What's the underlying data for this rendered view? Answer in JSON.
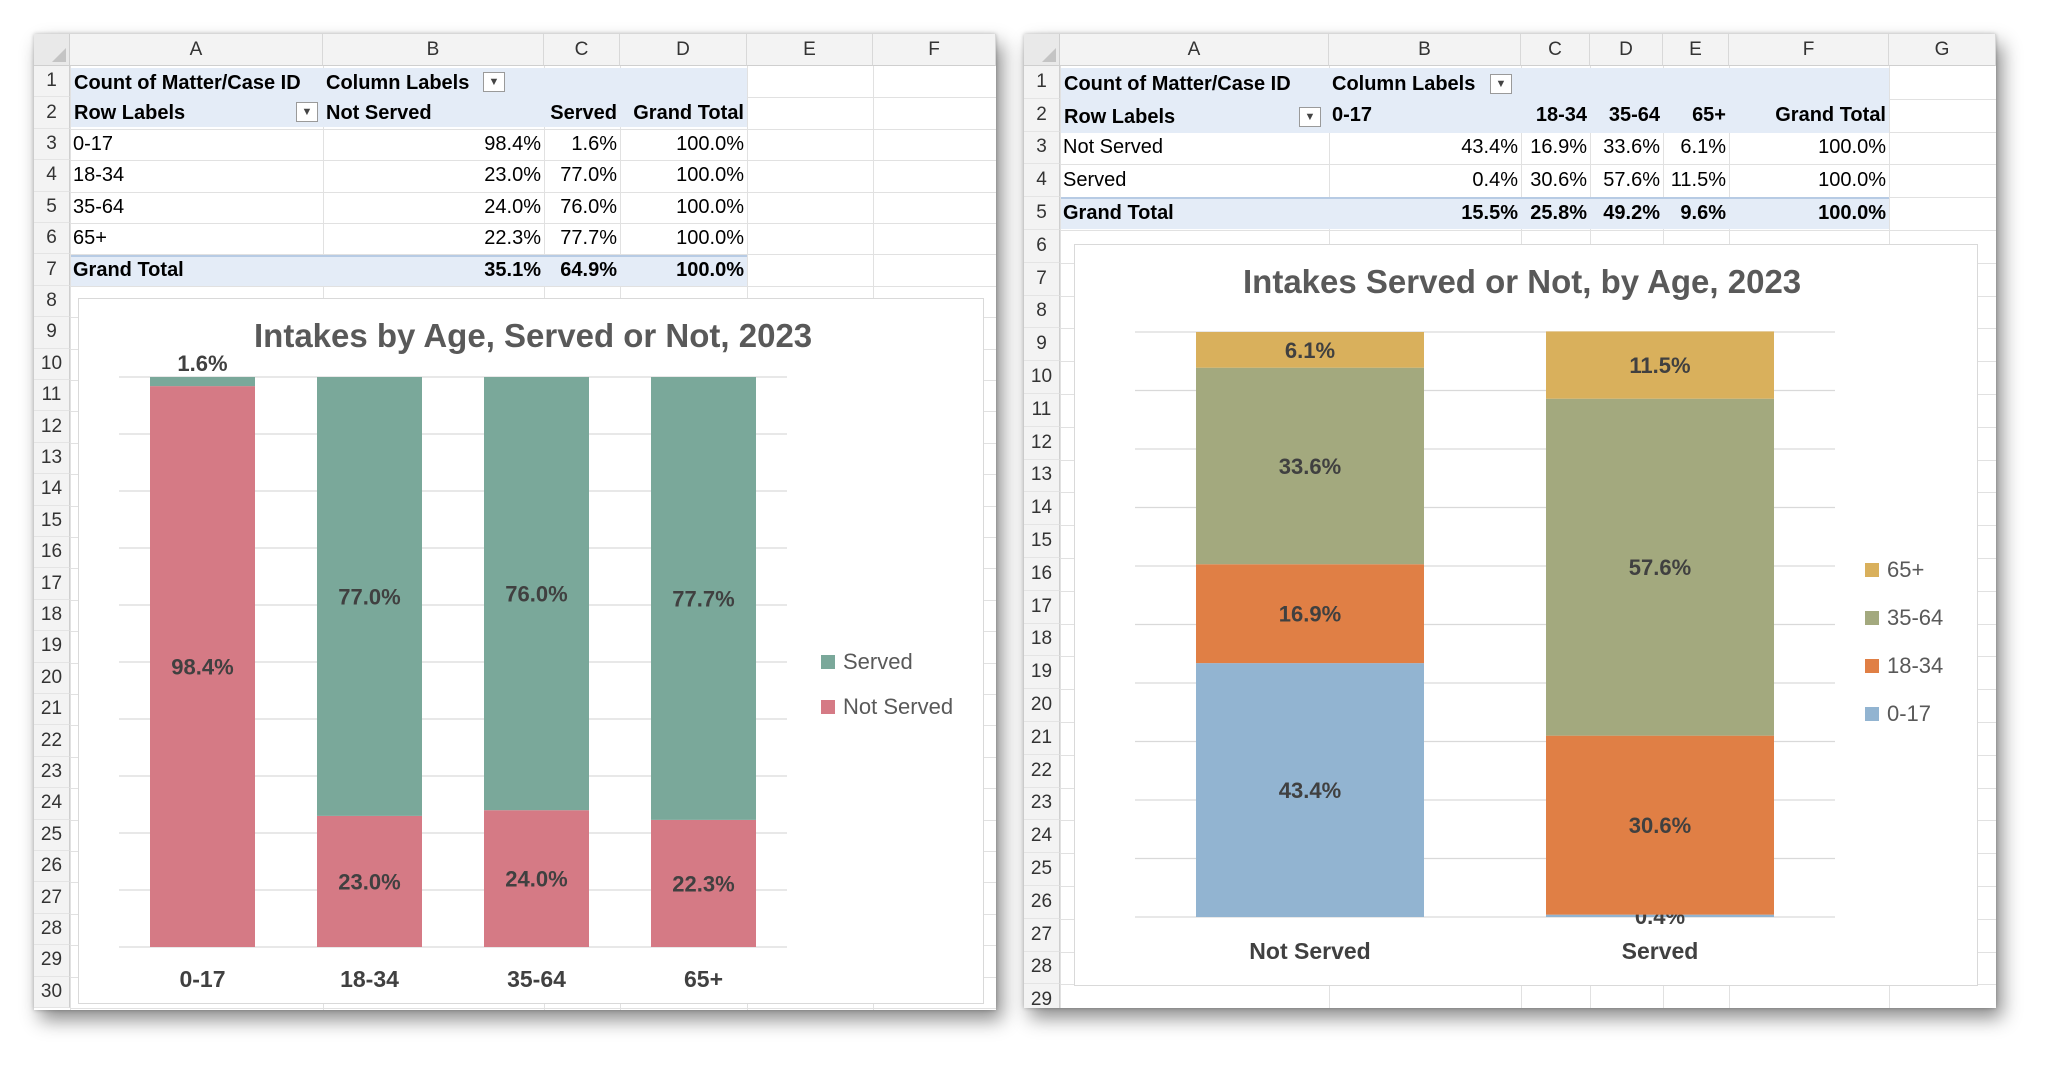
{
  "left_sheet": {
    "columns": [
      "A",
      "B",
      "C",
      "D",
      "E",
      "F"
    ],
    "rows": [
      "1",
      "2",
      "3",
      "4",
      "5",
      "6",
      "7",
      "8",
      "9",
      "10",
      "11",
      "12",
      "13",
      "14",
      "15",
      "16",
      "17",
      "18",
      "19",
      "20",
      "21",
      "22",
      "23",
      "24",
      "25",
      "26",
      "27",
      "28",
      "29",
      "30"
    ],
    "pivot": {
      "value_field": "Count of Matter/Case ID",
      "column_labels": "Column Labels",
      "row_labels": "Row Labels",
      "col_headers": [
        "Not Served",
        "Served",
        "Grand Total"
      ],
      "rows": [
        {
          "label": "0-17",
          "values": [
            "98.4%",
            "1.6%",
            "100.0%"
          ]
        },
        {
          "label": "18-34",
          "values": [
            "23.0%",
            "77.0%",
            "100.0%"
          ]
        },
        {
          "label": "35-64",
          "values": [
            "24.0%",
            "76.0%",
            "100.0%"
          ]
        },
        {
          "label": "65+",
          "values": [
            "22.3%",
            "77.7%",
            "100.0%"
          ]
        }
      ],
      "total": {
        "label": "Grand Total",
        "values": [
          "35.1%",
          "64.9%",
          "100.0%"
        ]
      }
    }
  },
  "right_sheet": {
    "columns": [
      "A",
      "B",
      "C",
      "D",
      "E",
      "F",
      "G"
    ],
    "rows": [
      "1",
      "2",
      "3",
      "4",
      "5",
      "6",
      "7",
      "8",
      "9",
      "10",
      "11",
      "12",
      "13",
      "14",
      "15",
      "16",
      "17",
      "18",
      "19",
      "20",
      "21",
      "22",
      "23",
      "24",
      "25",
      "26",
      "27",
      "28",
      "29"
    ],
    "pivot": {
      "value_field": "Count of Matter/Case ID",
      "column_labels": "Column Labels",
      "row_labels": "Row Labels",
      "col_headers": [
        "0-17",
        "18-34",
        "35-64",
        "65+",
        "Grand Total"
      ],
      "rows": [
        {
          "label": "Not Served",
          "values": [
            "43.4%",
            "16.9%",
            "33.6%",
            "6.1%",
            "100.0%"
          ]
        },
        {
          "label": "Served",
          "values": [
            "0.4%",
            "30.6%",
            "57.6%",
            "11.5%",
            "100.0%"
          ]
        }
      ],
      "total": {
        "label": "Grand Total",
        "values": [
          "15.5%",
          "25.8%",
          "49.2%",
          "9.6%",
          "100.0%"
        ]
      }
    }
  },
  "colors": {
    "served_left": "#7aa89a",
    "not_served_left": "#d57a85",
    "age_0_17": "#92b4d1",
    "age_18_34": "#e07f45",
    "age_35_64": "#a3a97e",
    "age_65_plus": "#d9b05c"
  },
  "chart_data": [
    {
      "type": "bar",
      "stacked": true,
      "percent_stacked": true,
      "title": "Intakes by Age, Served or Not, 2023",
      "categories": [
        "0-17",
        "18-34",
        "35-64",
        "65+"
      ],
      "series": [
        {
          "name": "Not Served",
          "values": [
            98.4,
            23.0,
            24.0,
            22.3
          ],
          "color": "#d57a85"
        },
        {
          "name": "Served",
          "values": [
            1.6,
            77.0,
            76.0,
            77.7
          ],
          "color": "#7aa89a"
        }
      ],
      "data_labels": true,
      "legend": "right",
      "ylim": [
        0,
        100
      ],
      "grid": true
    },
    {
      "type": "bar",
      "stacked": true,
      "percent_stacked": false,
      "title": "Intakes Served or Not, by Age, 2023",
      "categories": [
        "Not Served",
        "Served"
      ],
      "series": [
        {
          "name": "0-17",
          "values": [
            43.4,
            0.4
          ],
          "color": "#92b4d1"
        },
        {
          "name": "18-34",
          "values": [
            16.9,
            30.6
          ],
          "color": "#e07f45"
        },
        {
          "name": "35-64",
          "values": [
            33.6,
            57.6
          ],
          "color": "#a3a97e"
        },
        {
          "name": "65+",
          "values": [
            6.1,
            11.5
          ],
          "color": "#d9b05c"
        }
      ],
      "data_labels": true,
      "legend": "right",
      "ylim": [
        0,
        100
      ],
      "grid": true
    }
  ]
}
